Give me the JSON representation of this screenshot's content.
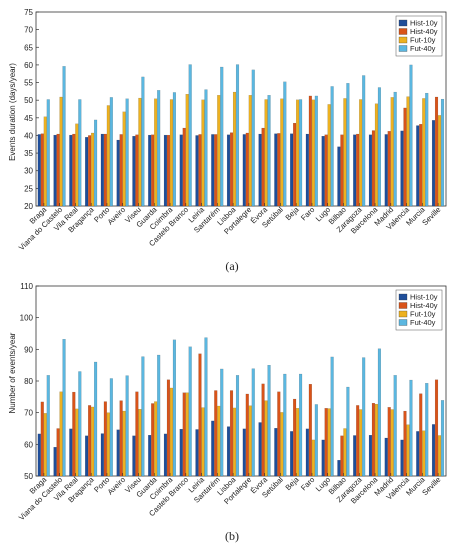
{
  "chart_data": [
    {
      "type": "bar",
      "panel_label": "(a)",
      "ylabel": "Events duration (days/year)",
      "ylim": [
        20,
        75
      ],
      "yticks": [
        20,
        25,
        30,
        35,
        40,
        45,
        50,
        55,
        60,
        65,
        70,
        75
      ],
      "grid": false,
      "legend_position": "top-right",
      "categories": [
        "Braga",
        "Viana do Castelo",
        "Vila Real",
        "Bragança",
        "Porto",
        "Aveiro",
        "Viseu",
        "Guarda",
        "Coimbra",
        "Castelo Branco",
        "Leiria",
        "Santarém",
        "Lisboa",
        "Portalegre",
        "Évora",
        "Setúbal",
        "Beja",
        "Faro",
        "Lugo",
        "Bilbao",
        "Zaragoza",
        "Barcelona",
        "Madrid",
        "Valencia",
        "Murcia",
        "Seville"
      ],
      "series": [
        {
          "name": "Hist-10y",
          "color": "#1f4e9a",
          "values": [
            40.3,
            40.1,
            40.1,
            39.5,
            40.4,
            38.7,
            39.8,
            40.1,
            40.1,
            40.2,
            40.0,
            40.3,
            40.2,
            40.3,
            40.4,
            40.5,
            40.5,
            40.4,
            39.8,
            36.8,
            40.2,
            40.2,
            40.3,
            41.3,
            42.8,
            44.3
          ]
        },
        {
          "name": "Hist-40y",
          "color": "#d95319",
          "values": [
            40.5,
            40.4,
            40.4,
            40.0,
            40.4,
            40.3,
            40.2,
            40.2,
            40.1,
            42.1,
            40.3,
            40.3,
            40.8,
            40.7,
            42.1,
            40.6,
            43.5,
            51.2,
            40.2,
            40.2,
            40.4,
            41.4,
            41.2,
            47.8,
            43.2,
            50.9
          ]
        },
        {
          "name": "Fut-10y",
          "color": "#edb120",
          "values": [
            45.3,
            50.9,
            43.3,
            40.7,
            48.5,
            46.7,
            50.6,
            50.4,
            50.2,
            51.7,
            50.1,
            51.4,
            52.3,
            51.4,
            50.2,
            50.4,
            50.1,
            50.1,
            48.8,
            50.5,
            50.2,
            49.0,
            50.8,
            51.0,
            50.5,
            45.7
          ]
        },
        {
          "name": "Fut-40y",
          "color": "#5bb7e0",
          "values": [
            50.2,
            59.6,
            50.2,
            44.4,
            50.8,
            50.4,
            56.6,
            52.8,
            52.2,
            60.1,
            53.0,
            59.4,
            60.1,
            58.6,
            51.4,
            55.2,
            50.2,
            51.2,
            53.9,
            54.8,
            57.0,
            53.6,
            52.3,
            60.0,
            52.0,
            50.3
          ]
        }
      ]
    },
    {
      "type": "bar",
      "panel_label": "(b)",
      "ylabel": "Number of events/year",
      "ylim": [
        50,
        110
      ],
      "yticks": [
        50,
        60,
        70,
        80,
        90,
        100,
        110
      ],
      "grid": false,
      "legend_position": "top-right",
      "categories": [
        "Braga",
        "Viana do Castelo",
        "Vila Real",
        "Bragança",
        "Porto",
        "Aveiro",
        "Viseu",
        "Guarda",
        "Coimbra",
        "Castelo Branco",
        "Leiria",
        "Santarém",
        "Lisboa",
        "Portalegre",
        "Évora",
        "Setúbal",
        "Beja",
        "Faro",
        "Lugo",
        "Bilbao",
        "Zaragoza",
        "Barcelona",
        "Madrid",
        "Valencia",
        "Murcia",
        "Seville"
      ],
      "series": [
        {
          "name": "Hist-10y",
          "color": "#1f4e9a",
          "values": [
            63.3,
            59.1,
            64.9,
            62.7,
            63.4,
            64.6,
            62.7,
            62.9,
            63.3,
            64.8,
            64.7,
            67.4,
            65.6,
            64.9,
            66.9,
            65.1,
            64.1,
            64.9,
            61.4,
            55.0,
            62.8,
            62.9,
            62.0,
            61.4,
            64.1,
            66.3
          ]
        },
        {
          "name": "Hist-40y",
          "color": "#d95319",
          "values": [
            73.4,
            65.0,
            76.5,
            72.3,
            73.5,
            73.8,
            76.6,
            72.9,
            80.4,
            76.3,
            88.6,
            77.0,
            77.0,
            75.9,
            79.1,
            76.6,
            74.3,
            79.0,
            71.4,
            62.7,
            72.3,
            73.0,
            71.7,
            70.5,
            76.0,
            80.4
          ]
        },
        {
          "name": "Fut-10y",
          "color": "#edb120",
          "values": [
            69.8,
            76.6,
            71.2,
            71.8,
            70.0,
            70.5,
            71.1,
            73.5,
            77.8,
            76.3,
            71.6,
            72.1,
            71.5,
            72.2,
            73.8,
            70.1,
            71.4,
            61.4,
            71.3,
            65.0,
            71.0,
            72.7,
            71.0,
            66.2,
            64.3,
            62.8
          ]
        },
        {
          "name": "Fut-40y",
          "color": "#5bb7e0",
          "values": [
            81.8,
            93.2,
            83.0,
            86.0,
            80.8,
            81.7,
            87.7,
            88.2,
            93.0,
            90.8,
            93.7,
            83.8,
            81.8,
            83.9,
            85.0,
            82.2,
            82.2,
            72.6,
            87.6,
            78.1,
            87.4,
            90.2,
            81.8,
            80.3,
            79.3,
            73.9
          ]
        }
      ]
    }
  ]
}
